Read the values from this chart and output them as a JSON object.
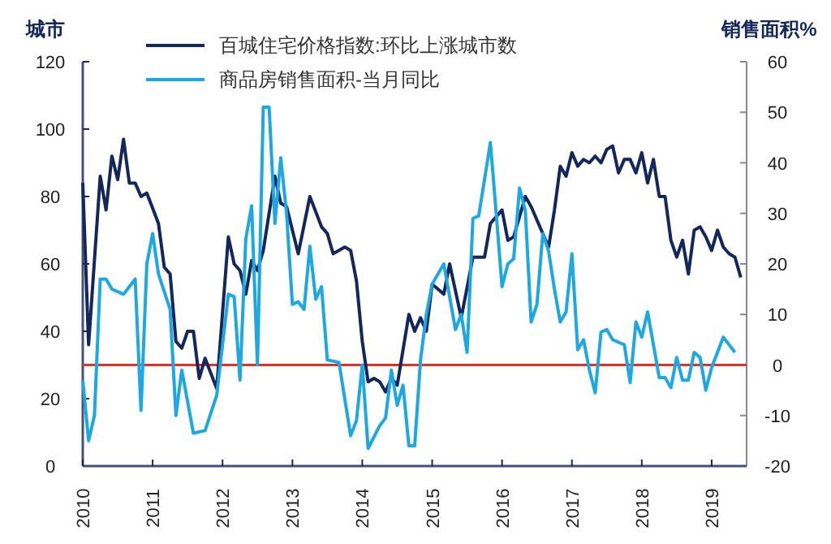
{
  "chart_data": {
    "type": "line",
    "ylabel": "城市",
    "y2label": "销售面积%",
    "xlim": [
      "2010-01",
      "2019-07"
    ],
    "xticks": [
      "2010",
      "2011",
      "2012",
      "2013",
      "2014",
      "2015",
      "2016",
      "2017",
      "2018",
      "2019"
    ],
    "ylim": [
      0,
      120
    ],
    "yticks": [
      0,
      20,
      40,
      60,
      80,
      100,
      120
    ],
    "y2lim": [
      -20,
      60
    ],
    "y2ticks": [
      -20,
      -10,
      0,
      10,
      20,
      30,
      40,
      50,
      60
    ],
    "legend": "top",
    "grid": false,
    "ref_lines": [
      {
        "axis": "y2",
        "value": 0,
        "color": "#e0302a"
      }
    ],
    "series": [
      {
        "name": "百城住宅价格指数:环比上涨城市数",
        "color": "#14275a",
        "axis": "y",
        "x": [
          "2010-01",
          "2010-02",
          "2010-04",
          "2010-05",
          "2010-06",
          "2010-07",
          "2010-08",
          "2010-09",
          "2010-10",
          "2010-11",
          "2010-12",
          "2011-02",
          "2011-03",
          "2011-04",
          "2011-05",
          "2011-06",
          "2011-07",
          "2011-08",
          "2011-09",
          "2011-10",
          "2011-12",
          "2012-02",
          "2012-03",
          "2012-04",
          "2012-05",
          "2012-06",
          "2012-07",
          "2012-08",
          "2012-10",
          "2012-11",
          "2012-12",
          "2013-02",
          "2013-04",
          "2013-06",
          "2013-07",
          "2013-08",
          "2013-10",
          "2013-11",
          "2013-12",
          "2014-01",
          "2014-02",
          "2014-03",
          "2014-04",
          "2014-05",
          "2014-06",
          "2014-07",
          "2014-09",
          "2014-10",
          "2014-11",
          "2014-12",
          "2015-01",
          "2015-03",
          "2015-04",
          "2015-06",
          "2015-08",
          "2015-10",
          "2015-11",
          "2016-01",
          "2016-02",
          "2016-03",
          "2016-05",
          "2016-06",
          "2016-09",
          "2016-10",
          "2016-11",
          "2016-12",
          "2017-01",
          "2017-02",
          "2017-03",
          "2017-04",
          "2017-05",
          "2017-06",
          "2017-07",
          "2017-08",
          "2017-09",
          "2017-10",
          "2017-11",
          "2017-12",
          "2018-01",
          "2018-02",
          "2018-03",
          "2018-04",
          "2018-05",
          "2018-06",
          "2018-07",
          "2018-08",
          "2018-09",
          "2018-10",
          "2018-11",
          "2018-12",
          "2019-01",
          "2019-02",
          "2019-03",
          "2019-04",
          "2019-05",
          "2019-06"
        ],
        "values": [
          84,
          36,
          86,
          76,
          92,
          85,
          97,
          84,
          84,
          80,
          81,
          72,
          59,
          57,
          37,
          35,
          40,
          40,
          26,
          32,
          23,
          68,
          60,
          58,
          51,
          61,
          58,
          64,
          86,
          78,
          77,
          63,
          80,
          71,
          69,
          63,
          65,
          64,
          55,
          37,
          25,
          26,
          25,
          22,
          26,
          24,
          45,
          40,
          44,
          40,
          54,
          51,
          60,
          44,
          62,
          62,
          72,
          76,
          67,
          68,
          80,
          77,
          65,
          76,
          89,
          86,
          93,
          89,
          91,
          90,
          92,
          90,
          94,
          95,
          87,
          91,
          91,
          87,
          93,
          84,
          91,
          80,
          80,
          67,
          62,
          67,
          57,
          70,
          71,
          68,
          64,
          70,
          65,
          63,
          62,
          56
        ]
      },
      {
        "name": "商品房销售面积-当月同比",
        "color": "#1ea7e1",
        "axis": "y2",
        "x": [
          "2010-01",
          "2010-02",
          "2010-03",
          "2010-04",
          "2010-05",
          "2010-06",
          "2010-08",
          "2010-10",
          "2010-11",
          "2010-12",
          "2011-01",
          "2011-02",
          "2011-04",
          "2011-05",
          "2011-06",
          "2011-08",
          "2011-10",
          "2011-12",
          "2012-02",
          "2012-03",
          "2012-04",
          "2012-05",
          "2012-06",
          "2012-07",
          "2012-08",
          "2012-09",
          "2012-10",
          "2012-11",
          "2012-12",
          "2013-01",
          "2013-02",
          "2013-03",
          "2013-04",
          "2013-05",
          "2013-06",
          "2013-07",
          "2013-09",
          "2013-11",
          "2013-12",
          "2014-01",
          "2014-02",
          "2014-04",
          "2014-05",
          "2014-06",
          "2014-07",
          "2014-08",
          "2014-09",
          "2014-10",
          "2014-11",
          "2014-12",
          "2015-01",
          "2015-03",
          "2015-04",
          "2015-05",
          "2015-06",
          "2015-07",
          "2015-08",
          "2015-09",
          "2015-11",
          "2015-12",
          "2016-01",
          "2016-02",
          "2016-03",
          "2016-04",
          "2016-05",
          "2016-06",
          "2016-07",
          "2016-08",
          "2016-09",
          "2016-10",
          "2016-11",
          "2016-12",
          "2017-01",
          "2017-02",
          "2017-03",
          "2017-04",
          "2017-05",
          "2017-06",
          "2017-07",
          "2017-08",
          "2017-09",
          "2017-10",
          "2017-11",
          "2017-12",
          "2018-01",
          "2018-02",
          "2018-03",
          "2018-04",
          "2018-05",
          "2018-06",
          "2018-07",
          "2018-08",
          "2018-09",
          "2018-10",
          "2018-11",
          "2018-12",
          "2019-01",
          "2019-03",
          "2019-04",
          "2019-05"
        ],
        "values": [
          -3,
          -15,
          -10,
          17,
          17,
          15,
          14,
          17,
          -9,
          20,
          26,
          18,
          11,
          -10,
          -1,
          -13.5,
          -13,
          -6,
          14,
          13.5,
          -3,
          25,
          31.5,
          0,
          51,
          51,
          28,
          41,
          30,
          12,
          12.5,
          11,
          23.5,
          13,
          15.5,
          1,
          0.5,
          -14,
          -11,
          0,
          -16.5,
          -12,
          -10.5,
          -1,
          -8,
          -4,
          -16,
          -16,
          1,
          10,
          16,
          20,
          13.5,
          7,
          10,
          2.5,
          29,
          29.5,
          44,
          30,
          15.5,
          20,
          21,
          35,
          30.5,
          8.5,
          12,
          26,
          22.5,
          15,
          8.5,
          10.5,
          22,
          3,
          5,
          -1,
          -5.5,
          6.5,
          7,
          5,
          4.5,
          4,
          -3.5,
          8.5,
          5.5,
          10.5,
          4,
          -2.5,
          -2.5,
          -4.5,
          1.5,
          -3,
          -3,
          2.5,
          1.5,
          -5,
          -0.5,
          5.5,
          4,
          2.5
        ]
      }
    ]
  }
}
